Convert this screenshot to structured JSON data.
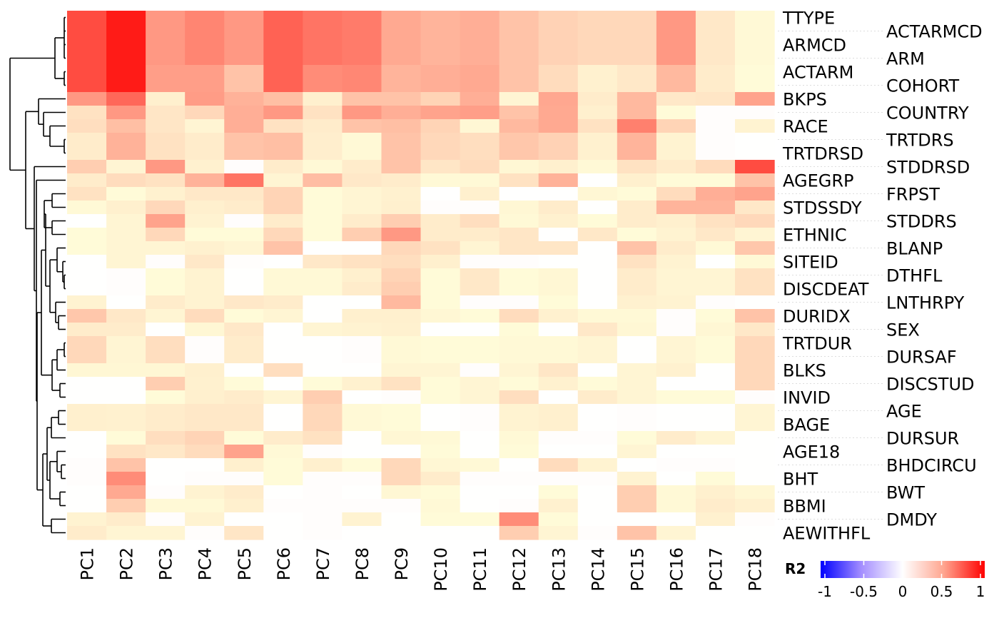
{
  "chart_data": {
    "type": "heatmap",
    "title": "",
    "xlabel": "",
    "ylabel": "",
    "columns": [
      "PC1",
      "PC2",
      "PC3",
      "PC4",
      "PC5",
      "PC6",
      "PC7",
      "PC8",
      "PC9",
      "PC10",
      "PC11",
      "PC12",
      "PC13",
      "PC14",
      "PC15",
      "PC16",
      "PC17",
      "PC18"
    ],
    "rows": [
      "TTYPE",
      "ACTARMCD",
      "ARMCD",
      "ARM",
      "ACTARM",
      "COHORT",
      "BKPS",
      "COUNTRY",
      "RACE",
      "TRTDRS",
      "TRTDRSD",
      "STDDRSD",
      "AGEGRP",
      "FRPST",
      "STDSSDY",
      "STDDRS",
      "ETHNIC",
      "BLANP",
      "SITEID",
      "DTHFL",
      "DISCDEAT",
      "LNTHRPY",
      "DURIDX",
      "SEX",
      "TRTDUR",
      "DURSAF",
      "BLKS",
      "DISCSTUD",
      "INVID",
      "AGE",
      "BAGE",
      "DURSUR",
      "AGE18",
      "BHDCIRCU",
      "BHT",
      "BWT",
      "BBMI",
      "DMDY",
      "AEWITHFL"
    ],
    "values": [
      [
        0.8,
        0.95,
        0.5,
        0.58,
        0.5,
        0.72,
        0.65,
        0.62,
        0.42,
        0.37,
        0.4,
        0.3,
        0.23,
        0.2,
        0.2,
        0.5,
        0.12,
        0.03
      ],
      [
        0.8,
        0.95,
        0.5,
        0.58,
        0.5,
        0.72,
        0.65,
        0.62,
        0.42,
        0.37,
        0.4,
        0.3,
        0.23,
        0.2,
        0.2,
        0.5,
        0.12,
        0.03
      ],
      [
        0.8,
        0.95,
        0.5,
        0.58,
        0.5,
        0.72,
        0.65,
        0.62,
        0.42,
        0.37,
        0.4,
        0.3,
        0.23,
        0.2,
        0.2,
        0.5,
        0.12,
        0.03
      ],
      [
        0.8,
        0.95,
        0.5,
        0.58,
        0.5,
        0.72,
        0.65,
        0.62,
        0.42,
        0.37,
        0.4,
        0.3,
        0.23,
        0.2,
        0.2,
        0.5,
        0.12,
        0.03
      ],
      [
        0.8,
        0.95,
        0.47,
        0.47,
        0.3,
        0.72,
        0.55,
        0.57,
        0.37,
        0.4,
        0.42,
        0.3,
        0.18,
        0.07,
        0.12,
        0.35,
        0.1,
        0.02
      ],
      [
        0.8,
        0.95,
        0.47,
        0.47,
        0.3,
        0.72,
        0.55,
        0.57,
        0.37,
        0.4,
        0.42,
        0.3,
        0.18,
        0.07,
        0.12,
        0.35,
        0.1,
        0.02
      ],
      [
        0.5,
        0.7,
        0.08,
        0.48,
        0.38,
        0.32,
        0.08,
        0.3,
        0.3,
        0.22,
        0.4,
        0.05,
        0.43,
        0.1,
        0.35,
        0.12,
        0.13,
        0.45
      ],
      [
        0.15,
        0.5,
        0.13,
        0.2,
        0.4,
        0.5,
        0.15,
        0.5,
        0.4,
        0.45,
        0.47,
        0.3,
        0.42,
        0.08,
        0.35,
        0.02,
        0.01,
        0.01
      ],
      [
        0.17,
        0.32,
        0.13,
        0.05,
        0.4,
        0.15,
        0.1,
        0.3,
        0.32,
        0.22,
        0.04,
        0.35,
        0.42,
        0.15,
        0.6,
        0.22,
        0.01,
        0.06
      ],
      [
        0.1,
        0.38,
        0.15,
        0.1,
        0.3,
        0.32,
        0.09,
        0.03,
        0.3,
        0.2,
        0.17,
        0.28,
        0.23,
        0.07,
        0.37,
        0.06,
        0.01,
        0.0
      ],
      [
        0.1,
        0.38,
        0.15,
        0.1,
        0.3,
        0.32,
        0.09,
        0.03,
        0.3,
        0.2,
        0.17,
        0.28,
        0.23,
        0.07,
        0.37,
        0.06,
        0.01,
        0.0
      ],
      [
        0.25,
        0.05,
        0.5,
        0.07,
        0.01,
        0.1,
        0.03,
        0.1,
        0.3,
        0.13,
        0.18,
        0.04,
        0.08,
        0.03,
        0.15,
        0.1,
        0.18,
        0.8
      ],
      [
        0.1,
        0.18,
        0.15,
        0.38,
        0.65,
        0.05,
        0.33,
        0.12,
        0.1,
        0.03,
        0.03,
        0.15,
        0.38,
        0.0,
        0.08,
        0.02,
        0.02,
        0.3
      ],
      [
        0.15,
        0.02,
        0.07,
        0.12,
        0.12,
        0.22,
        0.02,
        0.05,
        0.07,
        0.0,
        0.08,
        0.0,
        0.0,
        0.04,
        0.02,
        0.18,
        0.4,
        0.45
      ],
      [
        0.03,
        0.08,
        0.2,
        0.08,
        0.1,
        0.22,
        0.02,
        0.05,
        0.08,
        0.01,
        0.01,
        0.04,
        0.1,
        0.0,
        0.1,
        0.37,
        0.37,
        0.12
      ],
      [
        0.0,
        0.05,
        0.45,
        0.06,
        0.01,
        0.1,
        0.02,
        0.1,
        0.25,
        0.1,
        0.17,
        0.03,
        0.07,
        0.02,
        0.1,
        0.08,
        0.15,
        0.2
      ],
      [
        0.02,
        0.05,
        0.2,
        0.02,
        0.02,
        0.2,
        0.02,
        0.25,
        0.5,
        0.1,
        0.1,
        0.13,
        0.0,
        0.12,
        0.02,
        0.06,
        0.12,
        0.05
      ],
      [
        0.02,
        0.05,
        0.05,
        0.07,
        0.05,
        0.3,
        0.0,
        0.0,
        0.2,
        0.15,
        0.05,
        0.13,
        0.13,
        0.0,
        0.3,
        0.1,
        0.03,
        0.28
      ],
      [
        0.0,
        0.05,
        0.01,
        0.12,
        0.01,
        0.0,
        0.12,
        0.15,
        0.17,
        0.08,
        0.01,
        0.01,
        0.0,
        0.0,
        0.15,
        0.06,
        0.0,
        0.03
      ],
      [
        0.0,
        0.01,
        0.02,
        0.06,
        0.0,
        0.03,
        0.03,
        0.08,
        0.22,
        0.02,
        0.12,
        0.02,
        0.04,
        0.0,
        0.1,
        0.05,
        0.05,
        0.15
      ],
      [
        0.0,
        0.01,
        0.02,
        0.06,
        0.0,
        0.03,
        0.03,
        0.1,
        0.25,
        0.02,
        0.12,
        0.02,
        0.04,
        0.0,
        0.1,
        0.05,
        0.05,
        0.15
      ],
      [
        0.06,
        0.0,
        0.1,
        0.06,
        0.12,
        0.1,
        0.0,
        0.0,
        0.35,
        0.02,
        0.01,
        0.01,
        0.02,
        0.0,
        0.07,
        0.06,
        0.01,
        0.0
      ],
      [
        0.28,
        0.12,
        0.05,
        0.18,
        0.02,
        0.05,
        0.0,
        0.08,
        0.08,
        0.04,
        0.02,
        0.18,
        0.07,
        0.03,
        0.03,
        0.01,
        0.02,
        0.3
      ],
      [
        0.1,
        0.1,
        0.0,
        0.04,
        0.12,
        0.0,
        0.05,
        0.06,
        0.07,
        0.0,
        0.0,
        0.02,
        0.0,
        0.12,
        0.04,
        0.01,
        0.04,
        0.12
      ],
      [
        0.2,
        0.05,
        0.17,
        0.01,
        0.1,
        0.0,
        0.0,
        0.01,
        0.03,
        0.02,
        0.02,
        0.03,
        0.03,
        0.05,
        0.0,
        0.05,
        0.02,
        0.2
      ],
      [
        0.2,
        0.05,
        0.17,
        0.01,
        0.1,
        0.0,
        0.0,
        0.01,
        0.03,
        0.02,
        0.02,
        0.03,
        0.03,
        0.05,
        0.0,
        0.05,
        0.02,
        0.2
      ],
      [
        0.04,
        0.04,
        0.04,
        0.08,
        0.0,
        0.17,
        0.0,
        0.0,
        0.05,
        0.05,
        0.01,
        0.05,
        0.13,
        0.0,
        0.05,
        0.07,
        0.0,
        0.2
      ],
      [
        0.0,
        0.0,
        0.25,
        0.07,
        0.02,
        0.0,
        0.02,
        0.07,
        0.15,
        0.02,
        0.05,
        0.02,
        0.07,
        0.02,
        0.05,
        0.0,
        0.0,
        0.2
      ],
      [
        0.0,
        0.0,
        0.02,
        0.08,
        0.1,
        0.05,
        0.25,
        0.0,
        0.01,
        0.02,
        0.05,
        0.17,
        0.0,
        0.1,
        0.05,
        0.02,
        0.02,
        0.01
      ],
      [
        0.08,
        0.07,
        0.1,
        0.12,
        0.12,
        0.0,
        0.2,
        0.03,
        0.02,
        0.0,
        0.01,
        0.06,
        0.08,
        0.0,
        0.01,
        0.0,
        0.0,
        0.05
      ],
      [
        0.08,
        0.07,
        0.1,
        0.12,
        0.12,
        0.0,
        0.2,
        0.03,
        0.02,
        0.0,
        0.01,
        0.06,
        0.08,
        0.0,
        0.01,
        0.0,
        0.0,
        0.05
      ],
      [
        0.0,
        0.02,
        0.17,
        0.22,
        0.02,
        0.1,
        0.15,
        0.0,
        0.04,
        0.03,
        0.0,
        0.03,
        0.01,
        0.01,
        0.02,
        0.1,
        0.05,
        0.0
      ],
      [
        0.0,
        0.15,
        0.12,
        0.18,
        0.45,
        0.03,
        0.01,
        0.0,
        0.0,
        0.02,
        0.0,
        0.02,
        0.0,
        0.0,
        0.05,
        0.0,
        0.0,
        0.0
      ],
      [
        0.01,
        0.3,
        0.0,
        0.0,
        0.08,
        0.02,
        0.08,
        0.02,
        0.2,
        0.04,
        0.03,
        0.0,
        0.18,
        0.06,
        0.0,
        0.01,
        0.01,
        0.0
      ],
      [
        0.01,
        0.55,
        0.0,
        0.01,
        0.01,
        0.02,
        0.01,
        0.01,
        0.2,
        0.1,
        0.01,
        0.01,
        0.01,
        0.01,
        0.06,
        0.0,
        0.02,
        0.0
      ],
      [
        0.0,
        0.42,
        0.01,
        0.06,
        0.1,
        0.0,
        0.01,
        0.0,
        0.04,
        0.02,
        0.0,
        0.0,
        0.02,
        0.0,
        0.25,
        0.03,
        0.08,
        0.04
      ],
      [
        0.0,
        0.25,
        0.03,
        0.03,
        0.08,
        0.01,
        0.01,
        0.01,
        0.01,
        0.03,
        0.0,
        0.01,
        0.07,
        0.0,
        0.25,
        0.03,
        0.1,
        0.07
      ],
      [
        0.06,
        0.1,
        0.01,
        0.06,
        0.0,
        0.0,
        0.01,
        0.06,
        0.0,
        0.02,
        0.02,
        0.55,
        0.02,
        0.0,
        0.0,
        0.0,
        0.07,
        0.01
      ],
      [
        0.1,
        0.05,
        0.05,
        0.01,
        0.13,
        0.0,
        0.01,
        0.0,
        0.0,
        0.0,
        0.0,
        0.25,
        0.05,
        0.01,
        0.3,
        0.05,
        0.0,
        0.0
      ]
    ],
    "color_scale": {
      "low": "#0000FF",
      "mid": "#FFFFFF",
      "high": "#FF0000",
      "limits": [
        -1,
        1
      ]
    },
    "legend": {
      "title": "R2",
      "ticks": [
        "1",
        "0.5",
        "0",
        "-0.5",
        "-1"
      ],
      "tick_values": [
        1,
        0.5,
        0,
        -0.5,
        -1
      ],
      "placement": "right"
    },
    "row_dendrogram": true
  }
}
